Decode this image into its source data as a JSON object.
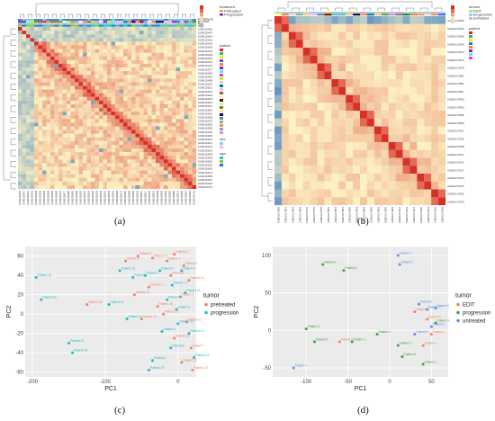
{
  "figure": {
    "captions": [
      "(a)",
      "(b)",
      "(c)",
      "(d)"
    ]
  },
  "heatmap_a": {
    "n": 44,
    "annotation_tracks": [
      "treatment",
      "patient",
      "sex",
      "age"
    ],
    "legend": {
      "treatment_title": "treatment",
      "treatment_items": [
        "Pretreated",
        "Progression"
      ],
      "patient_title": "patient",
      "sex_title": "sex",
      "age_title": "age"
    }
  },
  "heatmap_b": {
    "n": 24,
    "annotation_tracks": [
      "tumour",
      "patient"
    ],
    "legend": {
      "tumour_title": "tumour",
      "tumour_items": [
        "EDIT",
        "progression",
        "untreated"
      ],
      "patient_title": "patient"
    }
  },
  "colors": {
    "heat_low": "#4a86c1",
    "heat_mid": "#fdf3c4",
    "heat_high": "#d73027",
    "pca_bg": "#ebebeb",
    "orange": "#f08262",
    "teal": "#27b8c4",
    "green": "#3aa33b",
    "blue": "#5f8fe6"
  },
  "chart_data": [
    {
      "type": "scatter",
      "panel": "c",
      "xlabel": "PC1",
      "ylabel": "PC2",
      "xlim": [
        -210,
        25
      ],
      "ylim": [
        -65,
        70
      ],
      "x_ticks": [
        -200,
        -100,
        0
      ],
      "y_ticks": [
        60,
        40,
        20,
        0,
        -20,
        -40,
        -60
      ],
      "legend_title": "tumor",
      "series": [
        {
          "name": "pretreated",
          "color": "#f08262",
          "points": [
            {
              "x": -72,
              "y": 55,
              "label": "Patient 3"
            },
            {
              "x": -55,
              "y": 60,
              "label": "Patient 8"
            },
            {
              "x": -35,
              "y": 58,
              "label": "Patient 12"
            },
            {
              "x": -15,
              "y": 55,
              "label": "Patient 1"
            },
            {
              "x": -5,
              "y": 62,
              "label": "Patient 5"
            },
            {
              "x": 8,
              "y": 50,
              "label": "Patient 9"
            },
            {
              "x": 15,
              "y": 35,
              "label": "Patient 14"
            },
            {
              "x": -60,
              "y": 20,
              "label": "Patient 22"
            },
            {
              "x": -40,
              "y": 28,
              "label": "Patient 17"
            },
            {
              "x": -10,
              "y": 40,
              "label": "Patient 6"
            },
            {
              "x": -125,
              "y": 10,
              "label": "Patient 24"
            },
            {
              "x": 3,
              "y": 18,
              "label": "Patient 2"
            },
            {
              "x": -28,
              "y": 8,
              "label": "Patient 19"
            },
            {
              "x": -50,
              "y": -5,
              "label": "Patient 11"
            },
            {
              "x": 12,
              "y": -8,
              "label": "Patient 21"
            },
            {
              "x": -5,
              "y": -25,
              "label": "Patient 16"
            },
            {
              "x": 18,
              "y": -35,
              "label": "Patient 7"
            },
            {
              "x": -20,
              "y": 0,
              "label": "Patient 13"
            },
            {
              "x": 5,
              "y": -50,
              "label": "Patient 10"
            },
            {
              "x": 20,
              "y": -58,
              "label": "Patient 23"
            }
          ]
        },
        {
          "name": "progression",
          "color": "#27b8c4",
          "points": [
            {
              "x": -195,
              "y": 38,
              "label": "Patient 18"
            },
            {
              "x": -188,
              "y": 15,
              "label": "Patient 20"
            },
            {
              "x": -150,
              "y": -30,
              "label": "Patient 20"
            },
            {
              "x": -145,
              "y": -40,
              "label": "Patient 24"
            },
            {
              "x": -80,
              "y": 45,
              "label": "Patient 13"
            },
            {
              "x": -62,
              "y": 38,
              "label": "Patient 3"
            },
            {
              "x": -95,
              "y": 10,
              "label": "Patient 11"
            },
            {
              "x": -70,
              "y": -5,
              "label": "Patient 22"
            },
            {
              "x": -45,
              "y": 40,
              "label": "Patient 1"
            },
            {
              "x": -25,
              "y": 45,
              "label": "Patient 9"
            },
            {
              "x": -8,
              "y": 30,
              "label": "Patient 17"
            },
            {
              "x": 5,
              "y": 45,
              "label": "Patient 4"
            },
            {
              "x": 10,
              "y": 22,
              "label": "Patient 16"
            },
            {
              "x": -15,
              "y": 15,
              "label": "Patient 14"
            },
            {
              "x": -2,
              "y": 5,
              "label": "Patient 6"
            },
            {
              "x": 0,
              "y": -10,
              "label": "Patient 19"
            },
            {
              "x": -22,
              "y": -18,
              "label": "Patient 5"
            },
            {
              "x": -10,
              "y": -35,
              "label": "Patient 8"
            },
            {
              "x": -35,
              "y": -48,
              "label": "Patient 2"
            },
            {
              "x": 15,
              "y": -20,
              "label": "Patient 10"
            },
            {
              "x": 22,
              "y": -45,
              "label": "Patient 12"
            },
            {
              "x": -40,
              "y": -58,
              "label": "Patient 15"
            }
          ]
        }
      ]
    },
    {
      "type": "scatter",
      "panel": "d",
      "xlabel": "PC1",
      "ylabel": "PC2",
      "xlim": [
        -140,
        70
      ],
      "ylim": [
        -62,
        112
      ],
      "x_ticks": [
        -100,
        -50,
        0,
        50
      ],
      "y_ticks": [
        100,
        50,
        0,
        -50
      ],
      "legend_title": "tumor",
      "series": [
        {
          "name": "EDIT",
          "color": "#f08262",
          "points": [
            {
              "x": -60,
              "y": -15,
              "label": "Patient 3"
            },
            {
              "x": 30,
              "y": 25,
              "label": "Patient 1"
            },
            {
              "x": 45,
              "y": 15,
              "label": "Patient 5"
            },
            {
              "x": 50,
              "y": -5,
              "label": "Patient 2"
            },
            {
              "x": 40,
              "y": -20,
              "label": "Patient 4"
            }
          ]
        },
        {
          "name": "progression",
          "color": "#3aa33b",
          "points": [
            {
              "x": -80,
              "y": 88,
              "label": "Patient 2"
            },
            {
              "x": -55,
              "y": 80,
              "label": "Patient 6"
            },
            {
              "x": -100,
              "y": 2,
              "label": "Patient 3"
            },
            {
              "x": -90,
              "y": -15,
              "label": "Patient 5"
            },
            {
              "x": -45,
              "y": -15,
              "label": "Patient 1"
            },
            {
              "x": -15,
              "y": -5,
              "label": "Patient 4"
            },
            {
              "x": 10,
              "y": -20,
              "label": "Patient 3"
            },
            {
              "x": 15,
              "y": -35,
              "label": "Patient 6"
            },
            {
              "x": 55,
              "y": 10,
              "label": "Patient 4"
            },
            {
              "x": 40,
              "y": -45,
              "label": "Patient 1"
            }
          ]
        },
        {
          "name": "untreated",
          "color": "#5f8fe6",
          "points": [
            {
              "x": 10,
              "y": 100,
              "label": "Patient 1"
            },
            {
              "x": 12,
              "y": 88,
              "label": "Patient 2"
            },
            {
              "x": 35,
              "y": 35,
              "label": "Patient 3"
            },
            {
              "x": 45,
              "y": 28,
              "label": "Patient 5"
            },
            {
              "x": 55,
              "y": 30,
              "label": "Patient 6"
            },
            {
              "x": 50,
              "y": 5,
              "label": "Patient 4"
            },
            {
              "x": -115,
              "y": -50,
              "label": "Patient 7"
            },
            {
              "x": 30,
              "y": -5,
              "label": "Patient 8"
            }
          ]
        }
      ]
    }
  ]
}
